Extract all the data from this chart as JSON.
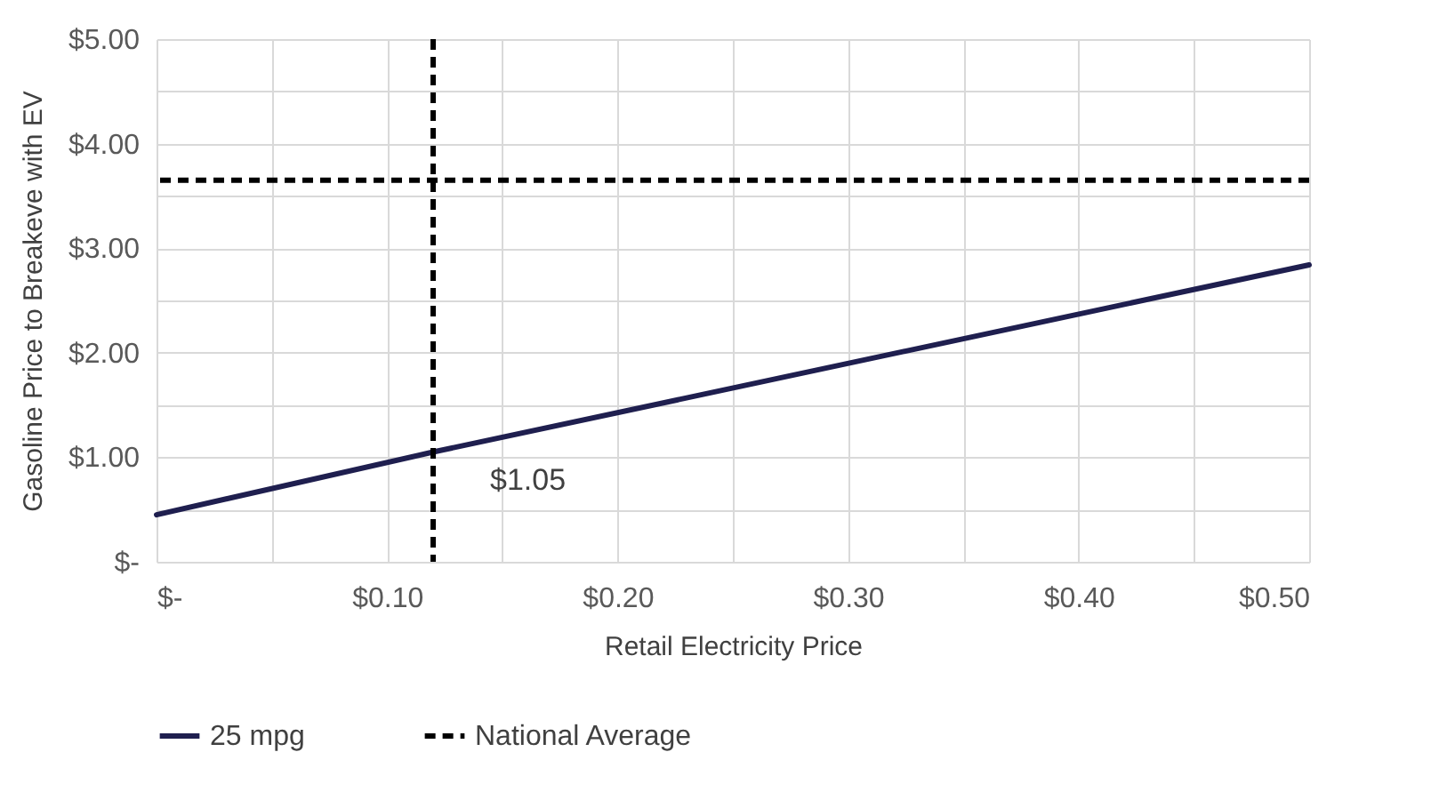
{
  "chart_data": {
    "type": "line",
    "xlabel": "Retail Electricity Price",
    "ylabel": "Gasoline Price to Breakeve with EV",
    "x": [
      0,
      0.12,
      0.5
    ],
    "series": [
      {
        "name": "25 mpg",
        "color": "#1f1f4f",
        "values": [
          0.45,
          1.05,
          2.84
        ],
        "line_style": "solid"
      }
    ],
    "ref_lines": [
      {
        "axis": "y",
        "value": 3.65,
        "label": "National Average",
        "color": "#000000",
        "line_style": "dashed"
      },
      {
        "axis": "x",
        "value": 0.12,
        "color": "#000000",
        "line_style": "dashed"
      }
    ],
    "annotations": [
      {
        "text": "$1.05",
        "x": 0.12,
        "y": 1.05
      }
    ],
    "xlim": [
      0,
      0.5
    ],
    "xticks": [
      {
        "value": 0,
        "label": "$-"
      },
      {
        "value": 0.05,
        "label": null
      },
      {
        "value": 0.1,
        "label": "$0.10"
      },
      {
        "value": 0.15,
        "label": null
      },
      {
        "value": 0.2,
        "label": "$0.20"
      },
      {
        "value": 0.25,
        "label": null
      },
      {
        "value": 0.3,
        "label": "$0.30"
      },
      {
        "value": 0.35,
        "label": null
      },
      {
        "value": 0.4,
        "label": "$0.40"
      },
      {
        "value": 0.45,
        "label": null
      },
      {
        "value": 0.5,
        "label": "$0.50"
      }
    ],
    "ylim": [
      0,
      5
    ],
    "yticks": [
      {
        "value": 0,
        "label": "$-"
      },
      {
        "value": 0.5,
        "label": null
      },
      {
        "value": 1,
        "label": "$1.00"
      },
      {
        "value": 1.5,
        "label": null
      },
      {
        "value": 2,
        "label": "$2.00"
      },
      {
        "value": 2.5,
        "label": null
      },
      {
        "value": 3,
        "label": "$3.00"
      },
      {
        "value": 3.5,
        "label": null
      },
      {
        "value": 4,
        "label": "$4.00"
      },
      {
        "value": 4.5,
        "label": null
      },
      {
        "value": 5,
        "label": "$5.00"
      }
    ],
    "grid": true,
    "legend": "bottom",
    "marker": "none"
  }
}
